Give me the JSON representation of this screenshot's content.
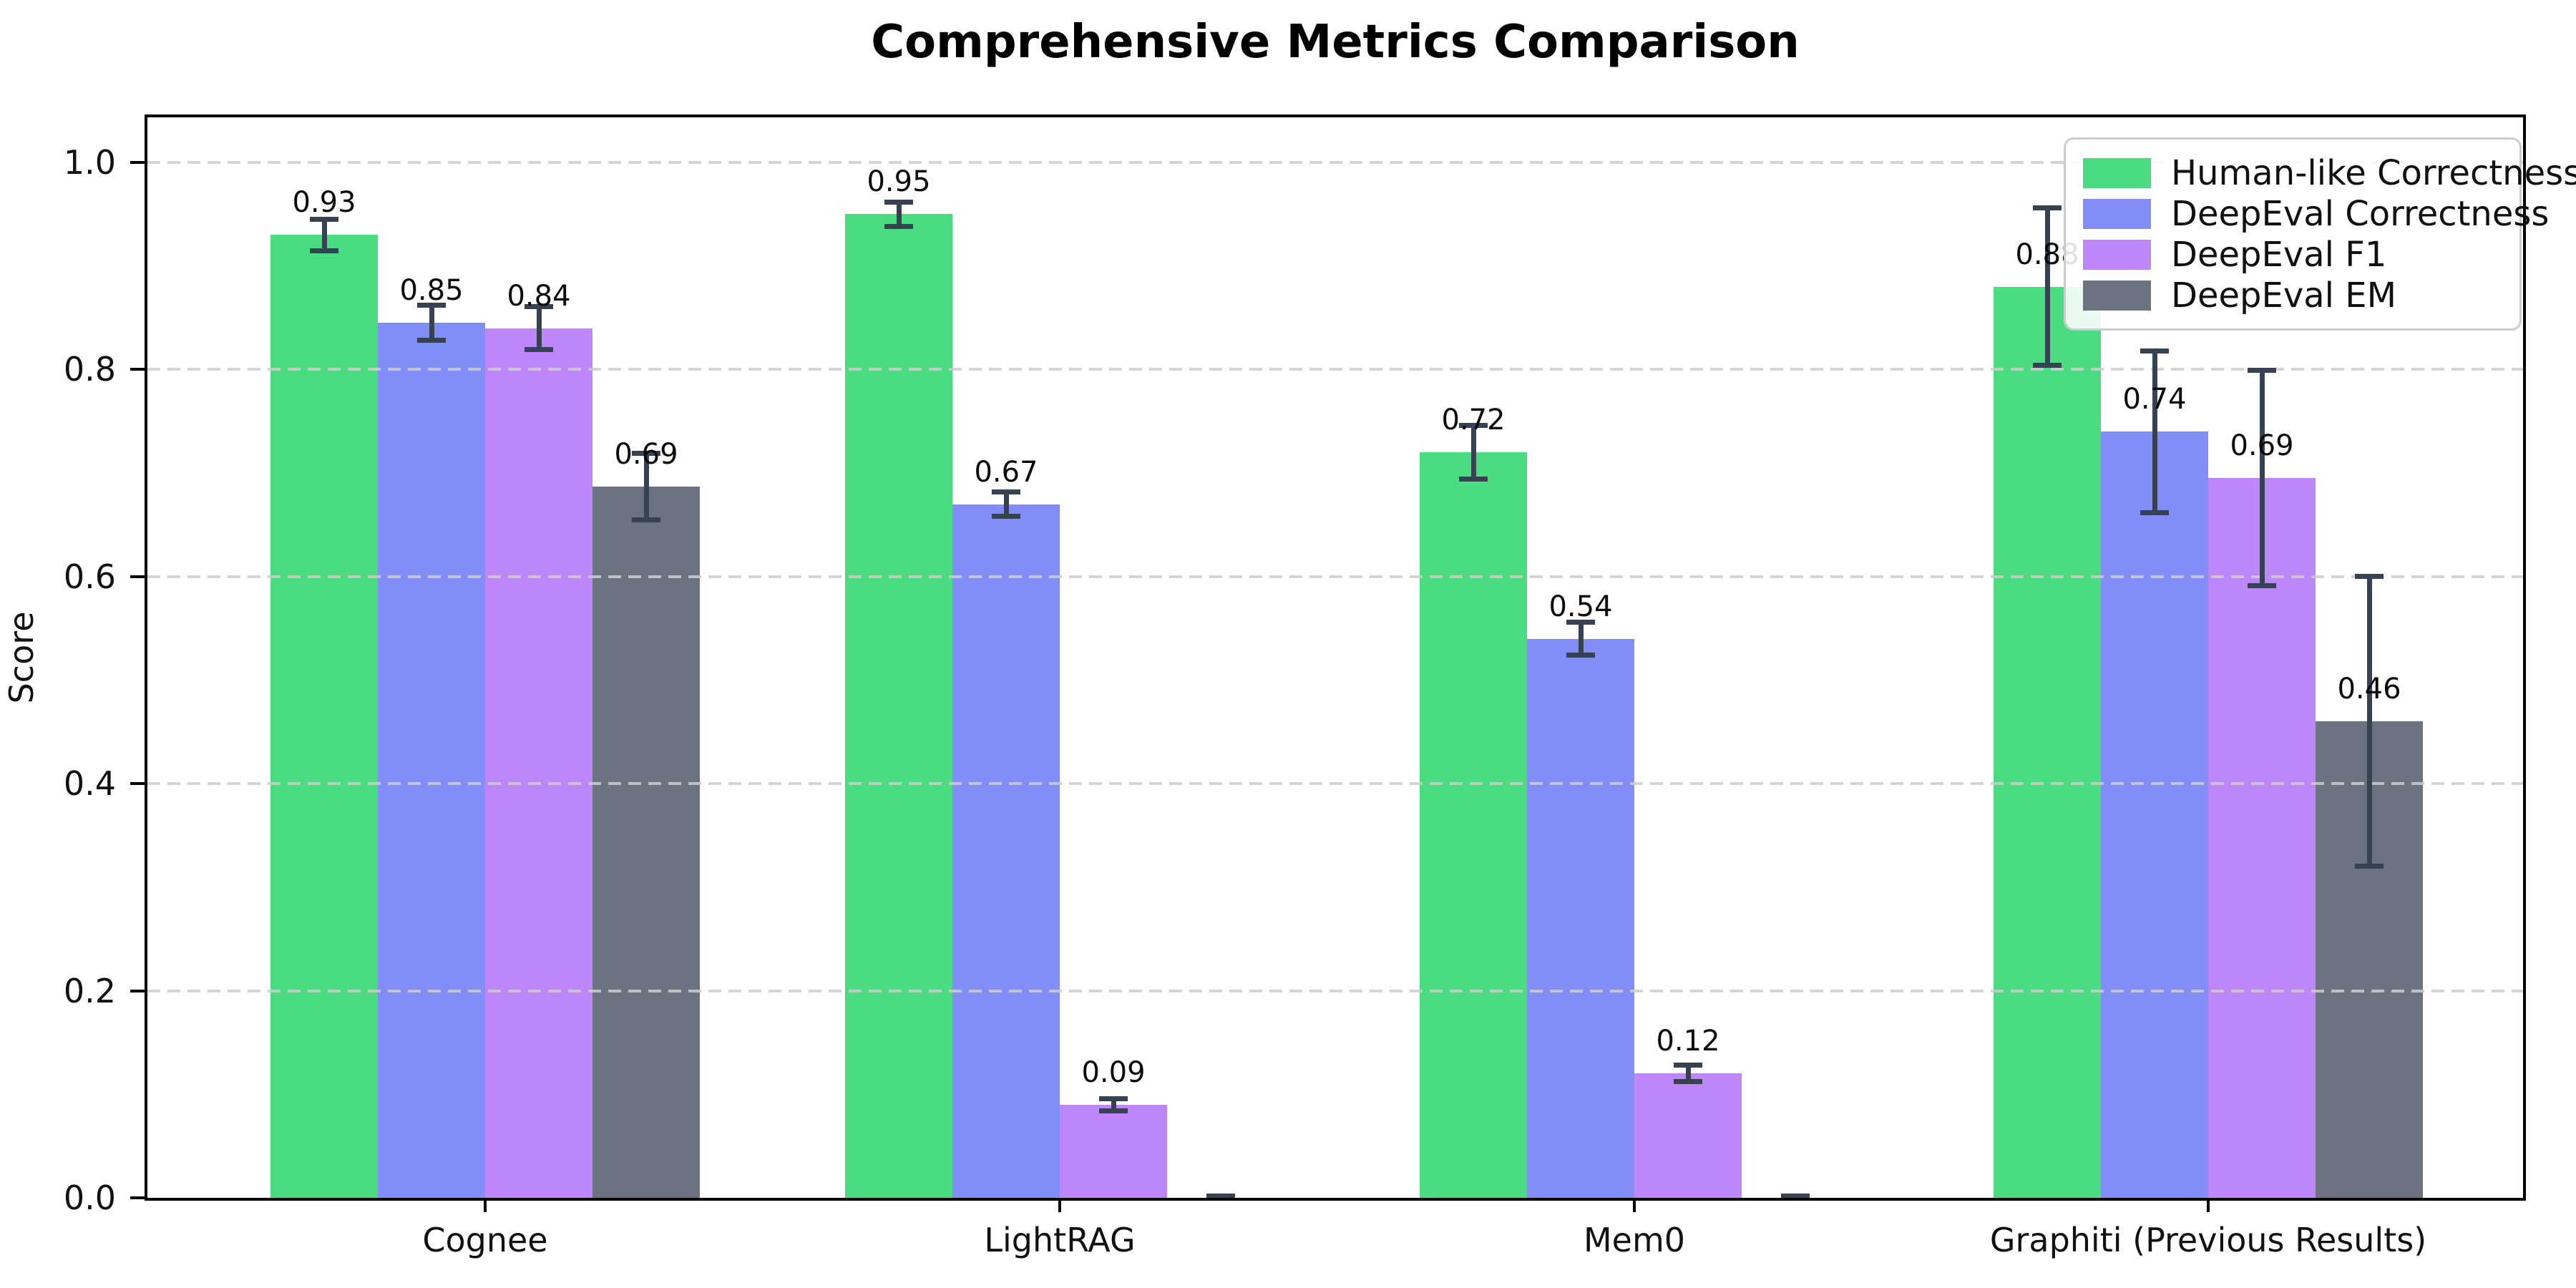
{
  "title": "Comprehensive Metrics Comparison",
  "chart_data": {
    "type": "bar",
    "title": "Comprehensive Metrics Comparison",
    "xlabel": "",
    "ylabel": "Score",
    "categories": [
      "Cognee",
      "LightRAG",
      "Mem0",
      "Graphiti (Previous Results)"
    ],
    "series": [
      {
        "name": "Human-like Correctness",
        "color": "#4bdb81",
        "values": [
          0.93,
          0.95,
          0.72,
          0.88
        ],
        "errors": [
          0.015,
          0.012,
          0.026,
          0.076
        ],
        "labels": [
          "0.93",
          "0.95",
          "0.72",
          "0.88"
        ]
      },
      {
        "name": "DeepEval Correctness",
        "color": "#838df7",
        "values": [
          0.845,
          0.67,
          0.54,
          0.74
        ],
        "errors": [
          0.017,
          0.012,
          0.016,
          0.078
        ],
        "labels": [
          "0.85",
          "0.67",
          "0.54",
          "0.74"
        ]
      },
      {
        "name": "DeepEval F1",
        "color": "#bd87fa",
        "values": [
          0.84,
          0.09,
          0.12,
          0.695
        ],
        "errors": [
          0.021,
          0.006,
          0.008,
          0.104
        ],
        "labels": [
          "0.84",
          "0.09",
          "0.12",
          "0.69"
        ]
      },
      {
        "name": "DeepEval EM",
        "color": "#6b7280",
        "values": [
          0.687,
          0.0,
          0.0,
          0.46
        ],
        "errors": [
          0.032,
          0.002,
          0.002,
          0.14
        ],
        "labels": [
          "0.69",
          "",
          "",
          "0.46"
        ]
      }
    ],
    "yticks": [
      0.0,
      0.2,
      0.4,
      0.6,
      0.8,
      1.0
    ],
    "ytick_labels": [
      "0.0",
      "0.2",
      "0.4",
      "0.6",
      "0.8",
      "1.0"
    ],
    "ylim": [
      0.0,
      1.048
    ],
    "grid": "horizontal-dashed",
    "legend_position": "upper-right",
    "errorbar_color": "#364152"
  }
}
